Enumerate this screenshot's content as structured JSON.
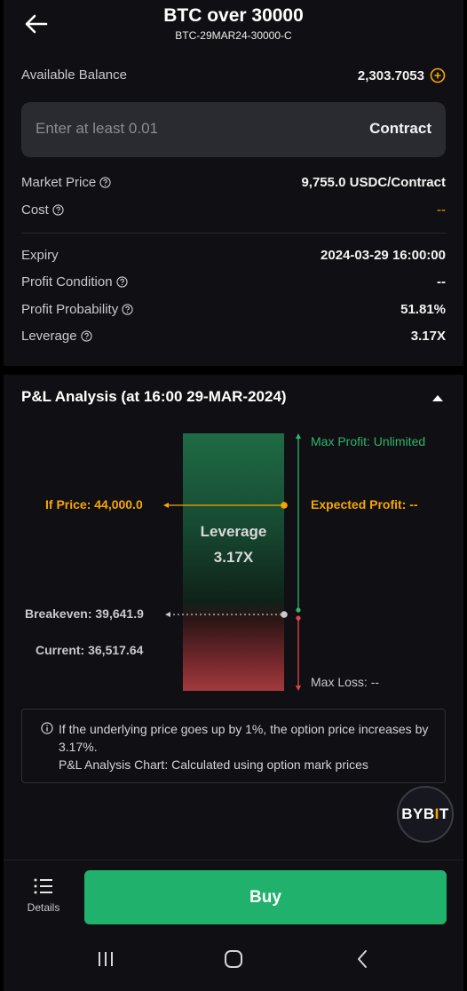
{
  "header": {
    "title": "BTC over 30000",
    "subtitle": "BTC-29MAR24-30000-C"
  },
  "balance": {
    "label": "Available Balance",
    "value": "2,303.7053"
  },
  "quantity_input": {
    "placeholder": "Enter at least 0.01",
    "unit": "Contract"
  },
  "market_price": {
    "label": "Market Price",
    "value": "9,755.0 USDC/Contract"
  },
  "cost": {
    "label": "Cost",
    "value": "--"
  },
  "expiry": {
    "label": "Expiry",
    "value": "2024-03-29 16:00:00"
  },
  "profit_condition": {
    "label": "Profit Condition",
    "value": "--"
  },
  "profit_probability": {
    "label": "Profit Probability",
    "value": "51.81%"
  },
  "leverage": {
    "label": "Leverage",
    "value": "3.17X"
  },
  "pl_analysis": {
    "title": "P&L Analysis (at 16:00 29-MAR-2024)",
    "max_profit": "Max Profit: Unlimited",
    "if_price": "If Price: 44,000.0",
    "expected_profit": "Expected Profit: --",
    "leverage_label": "Leverage",
    "leverage_value": "3.17X",
    "breakeven": "Breakeven: 39,641.9",
    "current": "Current: 36,517.64",
    "max_loss": "Max Loss: --"
  },
  "info": {
    "line1": "If the underlying price goes up by 1%, the option price increases by 3.17%.",
    "line2": "P&L Analysis Chart: Calculated using option mark prices"
  },
  "badge": {
    "brand": "BYBIT"
  },
  "bottom": {
    "details_label": "Details",
    "buy_label": "Buy"
  },
  "colors": {
    "accent": "#f7a600",
    "buy": "#20b26c",
    "profit": "#2fb46a",
    "loss": "#e0474c"
  }
}
